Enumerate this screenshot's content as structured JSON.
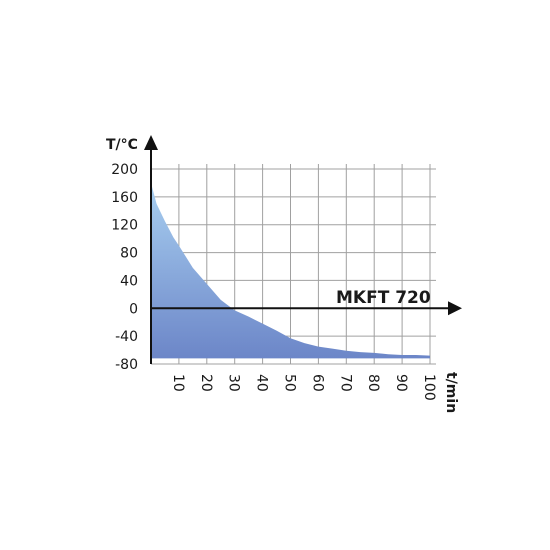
{
  "chart_data": {
    "type": "area",
    "title": "",
    "xlabel": "t/min",
    "ylabel": "T/°C",
    "annotation": "MKFT 720",
    "xlim": [
      0,
      102
    ],
    "ylim": [
      -80,
      200
    ],
    "xticks": [
      10,
      20,
      30,
      40,
      50,
      60,
      70,
      80,
      90,
      100
    ],
    "yticks": [
      200,
      160,
      120,
      80,
      40,
      0,
      -40,
      -80
    ],
    "grid": true,
    "series": [
      {
        "x": [
          0,
          2,
          5,
          8,
          10,
          15,
          20,
          25,
          30,
          35,
          40,
          45,
          50,
          55,
          60,
          65,
          70,
          75,
          80,
          85,
          90,
          95,
          100
        ],
        "y": [
          180,
          150,
          125,
          102,
          90,
          58,
          35,
          12,
          -3,
          -12,
          -22,
          -32,
          -43,
          -50,
          -55,
          -58,
          -61,
          -63,
          -64,
          -66,
          -67,
          -67,
          -68
        ],
        "baseline": -72,
        "color_top": "#a8cff0",
        "color_bottom": "#6c86c8"
      }
    ]
  }
}
